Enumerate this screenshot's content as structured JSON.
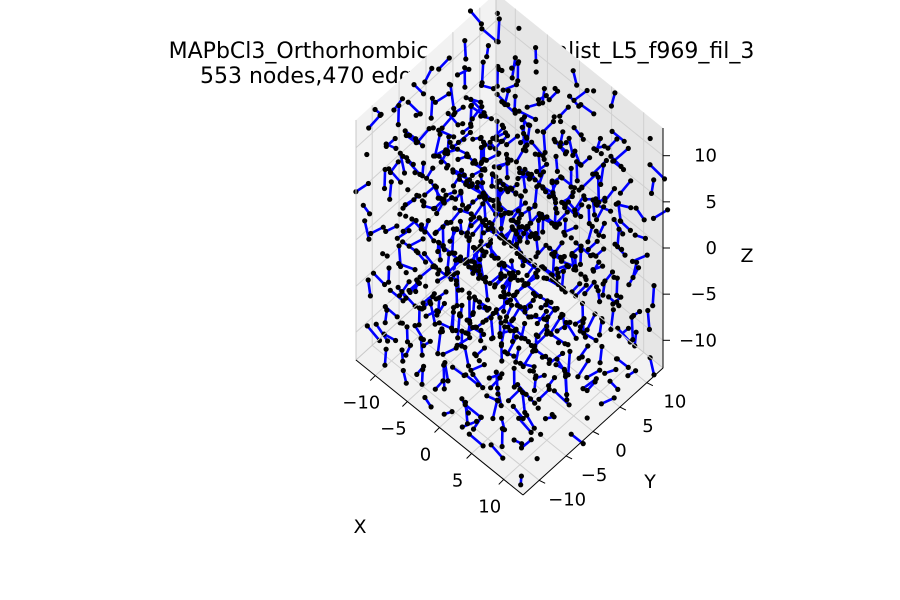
{
  "chart_data": {
    "type": "scatter",
    "title_lines": [
      "MAPbCl3_Orthorhombic_CNXPb_atmlist_L5_f969_fil_3",
      "553 nodes,470 edges, 0 triangles"
    ],
    "xlabel": "X",
    "ylabel": "Y",
    "zlabel": "Z",
    "xlim": [
      -13,
      13
    ],
    "ylim": [
      -13,
      13
    ],
    "zlim": [
      -13,
      13
    ],
    "xticks": [
      -10,
      -5,
      0,
      5,
      10
    ],
    "yticks": [
      -10,
      -5,
      0,
      5,
      10
    ],
    "zticks": [
      -10,
      -5,
      0,
      5,
      10
    ],
    "xtick_labels": [
      "−10",
      "−5",
      "0",
      "5",
      "10"
    ],
    "ytick_labels": [
      "−10",
      "−5",
      "0",
      "5",
      "10"
    ],
    "ztick_labels": [
      "−10",
      "−5",
      "0",
      "5",
      "10"
    ],
    "grid": true,
    "node_color": "#000000",
    "edge_color": "#0000ff",
    "lattice_spacing": 3,
    "edge_offset": 1,
    "nodes": 553,
    "edges": 470,
    "triangles": 0
  }
}
